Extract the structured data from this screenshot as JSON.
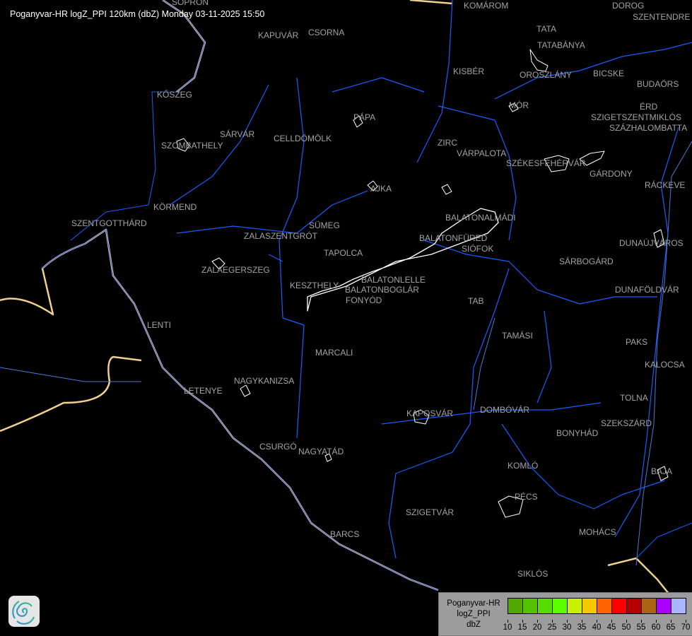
{
  "title": "Poganyvar-HR logZ_PPI 120km (dbZ) Monday 03-11-2025 15:50",
  "cities": [
    "SOPRON",
    "KOMÁROM",
    "DOROG",
    "SZENTENDRE",
    "KAPUVÁR",
    "CSORNA",
    "TATA",
    "TATABÁNYA",
    "KISBÉR",
    "OROSZLÁNY",
    "BICSKE",
    "BUDAÖRS",
    "KŐSZEG",
    "MÓR",
    "ÉRD",
    "SZIGETSZENTMIKLÓS",
    "SZÁZHALOMBATTA",
    "PÁPA",
    "SÁRVÁR",
    "CELLDÖMÖLK",
    "SZOMBATHELY",
    "ZIRC",
    "VÁRPALOTA",
    "SZÉKESFEHÉRVÁR",
    "GÁRDONY",
    "RÁCKEVE",
    "AJKA",
    "KÖRMEND",
    "BALATONALMÁDI",
    "SZENTGOTTHÁRD",
    "SÜMEG",
    "ZALASZENTGRÓT",
    "BALATONFÜRED",
    "SIÓFOK",
    "DUNAÚJVÁROS",
    "TAPOLCA",
    "SÁRBOGÁRD",
    "ZALAEGERSZEG",
    "BALATONLELLE",
    "KESZTHELY",
    "BALATONBOGLÁR",
    "FONYÓD",
    "DUNAFÖLDVÁR",
    "TAB",
    "LENTI",
    "TAMÁSI",
    "PAKS",
    "MARCALI",
    "KALOCSA",
    "NAGYKANIZSA",
    "LETENYE",
    "TOLNA",
    "KAPOSVÁR",
    "DOMBÓVÁR",
    "SZEKSZÁRD",
    "BONYHÁD",
    "CSURGÓ",
    "NAGYATÁD",
    "KOMLÓ",
    "BAJA",
    "PÉCS",
    "SZIGETVÁR",
    "MOHÁCS",
    "BARCS",
    "SIKLÓS"
  ],
  "legend": {
    "radar": "Poganyvar-HR",
    "product": "logZ_PPI",
    "unit": "dbZ",
    "colors": [
      "#52a800",
      "#55c200",
      "#55dd00",
      "#5aff00",
      "#c8f000",
      "#f5c800",
      "#ff6400",
      "#ff0000",
      "#b40000",
      "#aa6414",
      "#aa00ff",
      "#aab4ff"
    ],
    "ticks": [
      "10",
      "15",
      "20",
      "25",
      "30",
      "35",
      "40",
      "45",
      "50",
      "55",
      "60",
      "65",
      "70"
    ]
  },
  "map_colors": {
    "river": "#1a5cff",
    "border": "#f0d090",
    "coast": "#ffffff",
    "background": "#000000"
  },
  "logo": "swirl-logo"
}
